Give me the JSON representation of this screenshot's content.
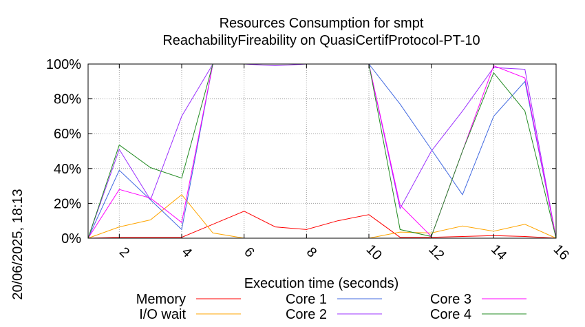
{
  "chart_data": {
    "type": "line",
    "title": "Resources Consumption for smpt",
    "subtitle": "ReachabilityFireability on QuasiCertifProtocol-PT-10",
    "xlabel": "Execution time (seconds)",
    "ylabel": "",
    "side_label": "20/06/2025, 18:13",
    "xlim": [
      1,
      16
    ],
    "ylim": [
      0,
      100
    ],
    "xticks": [
      2,
      4,
      6,
      8,
      10,
      12,
      14,
      16
    ],
    "yticks": [
      0,
      20,
      40,
      60,
      80,
      100
    ],
    "ytick_labels": [
      "0%",
      "20%",
      "40%",
      "60%",
      "80%",
      "100%"
    ],
    "grid": true,
    "legend_position": "bottom",
    "x": [
      1,
      2,
      3,
      4,
      5,
      6,
      7,
      8,
      9,
      10,
      11,
      12,
      13,
      14,
      15,
      16
    ],
    "series": [
      {
        "name": "Memory",
        "color": "#ff0000",
        "values": [
          0,
          0.5,
          0.5,
          0.5,
          8,
          15.5,
          6.5,
          5,
          10,
          13.5,
          0.5,
          0.5,
          1,
          1.5,
          1,
          0
        ]
      },
      {
        "name": "I/O wait",
        "color": "#ffa500",
        "values": [
          0,
          6.5,
          10.5,
          25,
          3,
          0,
          0,
          0,
          0,
          0,
          3.5,
          3,
          7,
          4,
          8,
          0
        ]
      },
      {
        "name": "Core 1",
        "color": "#4169e1",
        "values": [
          0,
          39,
          22,
          5,
          100,
          100,
          100,
          100,
          100,
          100,
          77,
          51,
          25,
          70,
          90,
          0
        ]
      },
      {
        "name": "Core 2",
        "color": "#9b30ff",
        "values": [
          0,
          51,
          22,
          70,
          100,
          100,
          99,
          100,
          100,
          100,
          17,
          50,
          73,
          98,
          97,
          0
        ]
      },
      {
        "name": "Core 3",
        "color": "#ff00ff",
        "values": [
          0,
          28,
          23,
          9,
          100,
          100,
          100,
          100,
          100,
          100,
          19,
          1,
          50,
          99,
          92,
          0
        ]
      },
      {
        "name": "Core 4",
        "color": "#228b22",
        "values": [
          0,
          53.5,
          40.5,
          34.5,
          100,
          100,
          100,
          100,
          100,
          100,
          5,
          1,
          50,
          95,
          73,
          0
        ]
      }
    ]
  }
}
